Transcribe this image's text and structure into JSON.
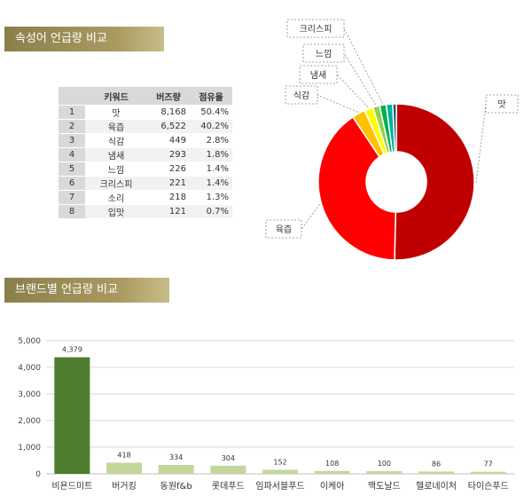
{
  "section1": {
    "title": "속성어 언급량 비교"
  },
  "section2": {
    "title": "브랜드별 언급량 비교"
  },
  "keyword_table": {
    "headers": [
      "",
      "키워드",
      "버즈량",
      "점유율"
    ],
    "rows": [
      {
        "rank": "1",
        "keyword": "맛",
        "buzz": "8,168",
        "share": "50.4%"
      },
      {
        "rank": "2",
        "keyword": "육즙",
        "buzz": "6,522",
        "share": "40.2%"
      },
      {
        "rank": "3",
        "keyword": "식감",
        "buzz": "449",
        "share": "2.8%"
      },
      {
        "rank": "4",
        "keyword": "냄새",
        "buzz": "293",
        "share": "1.8%"
      },
      {
        "rank": "5",
        "keyword": "느낌",
        "buzz": "226",
        "share": "1.4%"
      },
      {
        "rank": "6",
        "keyword": "크리스피",
        "buzz": "221",
        "share": "1.4%"
      },
      {
        "rank": "7",
        "keyword": "소리",
        "buzz": "218",
        "share": "1.3%"
      },
      {
        "rank": "8",
        "keyword": "입맛",
        "buzz": "121",
        "share": "0.7%"
      }
    ]
  },
  "chart_data": [
    {
      "type": "pie",
      "subtype": "donut",
      "categories": [
        "맛",
        "육즙",
        "식감",
        "냄새",
        "느낌",
        "크리스피",
        "소리",
        "입맛"
      ],
      "values": [
        8168,
        6522,
        449,
        293,
        226,
        221,
        218,
        121
      ],
      "colors": [
        "#c00000",
        "#ff0000",
        "#ffc000",
        "#ffff00",
        "#92d050",
        "#00b050",
        "#00b0a0",
        "#006060"
      ],
      "callout_labels": [
        "맛",
        "육즙",
        "식감",
        "냄새",
        "느낌",
        "크리스피"
      ]
    },
    {
      "type": "bar",
      "categories": [
        "비욘드미트",
        "버거킹",
        "동원f&b",
        "롯데푸드",
        "임파서블푸드",
        "이케아",
        "맥도날드",
        "헬로네이처",
        "타이슨푸드"
      ],
      "values": [
        4379,
        418,
        334,
        304,
        152,
        108,
        100,
        86,
        77
      ],
      "data_labels": [
        "4,379",
        "418",
        "334",
        "304",
        "152",
        "108",
        "100",
        "86",
        "77"
      ],
      "yticks": [
        "0",
        "1,000",
        "2,000",
        "3,000",
        "4,000",
        "5,000"
      ],
      "ylim": [
        0,
        5000
      ],
      "colors": {
        "highlight": "#4f7c2e",
        "default": "#c4d79b"
      },
      "grid": true,
      "xlabel": "",
      "ylabel": ""
    }
  ]
}
